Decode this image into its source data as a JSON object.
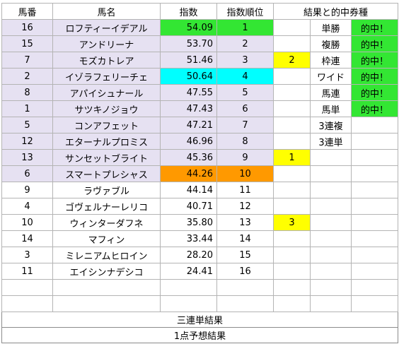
{
  "header": {
    "umaban": "馬番",
    "bamei": "馬名",
    "shisu": "指数",
    "juni": "指数順位",
    "kekka": "結果と的中券種"
  },
  "colors": {
    "highlight_row": "#e6e1f2",
    "green": "#33e633",
    "cyan": "#00ffff",
    "orange": "#ff9900",
    "yellow": "#ffff00"
  },
  "rows": [
    {
      "umaban": "16",
      "bamei": "ロフティーイデアル",
      "shisu": "54.09",
      "juni": "1",
      "result": "",
      "ticket": "単勝",
      "hit": "的中！"
    },
    {
      "umaban": "15",
      "bamei": "アンドリーナ",
      "shisu": "53.70",
      "juni": "2",
      "result": "",
      "ticket": "複勝",
      "hit": "的中！"
    },
    {
      "umaban": "7",
      "bamei": "モズカトレア",
      "shisu": "51.46",
      "juni": "3",
      "result": "2",
      "ticket": "枠連",
      "hit": "的中！"
    },
    {
      "umaban": "2",
      "bamei": "イゾラフェリーチェ",
      "shisu": "50.64",
      "juni": "4",
      "result": "",
      "ticket": "ワイド",
      "hit": "的中！"
    },
    {
      "umaban": "8",
      "bamei": "アパイシュナール",
      "shisu": "47.55",
      "juni": "5",
      "result": "",
      "ticket": "馬連",
      "hit": "的中！"
    },
    {
      "umaban": "1",
      "bamei": "サツキノジョウ",
      "shisu": "47.43",
      "juni": "6",
      "result": "",
      "ticket": "馬単",
      "hit": "的中！"
    },
    {
      "umaban": "5",
      "bamei": "コンアフェット",
      "shisu": "47.21",
      "juni": "7",
      "result": "",
      "ticket": "3連複",
      "hit": ""
    },
    {
      "umaban": "12",
      "bamei": "エターナルプロミス",
      "shisu": "46.96",
      "juni": "8",
      "result": "",
      "ticket": "3連単",
      "hit": ""
    },
    {
      "umaban": "13",
      "bamei": "サンセットブライト",
      "shisu": "45.36",
      "juni": "9",
      "result": "1",
      "ticket": "",
      "hit": ""
    },
    {
      "umaban": "6",
      "bamei": "スマートプレシャス",
      "shisu": "44.26",
      "juni": "10",
      "result": "",
      "ticket": "",
      "hit": ""
    },
    {
      "umaban": "9",
      "bamei": "ラヴァブル",
      "shisu": "44.14",
      "juni": "11",
      "result": "",
      "ticket": "",
      "hit": ""
    },
    {
      "umaban": "4",
      "bamei": "ゴヴェルナーレリコ",
      "shisu": "40.71",
      "juni": "12",
      "result": "",
      "ticket": "",
      "hit": ""
    },
    {
      "umaban": "10",
      "bamei": "ウィンターダフネ",
      "shisu": "35.80",
      "juni": "13",
      "result": "3",
      "ticket": "",
      "hit": ""
    },
    {
      "umaban": "14",
      "bamei": "マフィン",
      "shisu": "33.44",
      "juni": "14",
      "result": "",
      "ticket": "",
      "hit": ""
    },
    {
      "umaban": "3",
      "bamei": "ミレニアムヒロイン",
      "shisu": "28.20",
      "juni": "15",
      "result": "",
      "ticket": "",
      "hit": ""
    },
    {
      "umaban": "11",
      "bamei": "エイシンナデシコ",
      "shisu": "24.41",
      "juni": "16",
      "result": "",
      "ticket": "",
      "hit": ""
    }
  ],
  "footer": {
    "sanrentan": "三連単結果",
    "yoso": "1点予想結果"
  }
}
